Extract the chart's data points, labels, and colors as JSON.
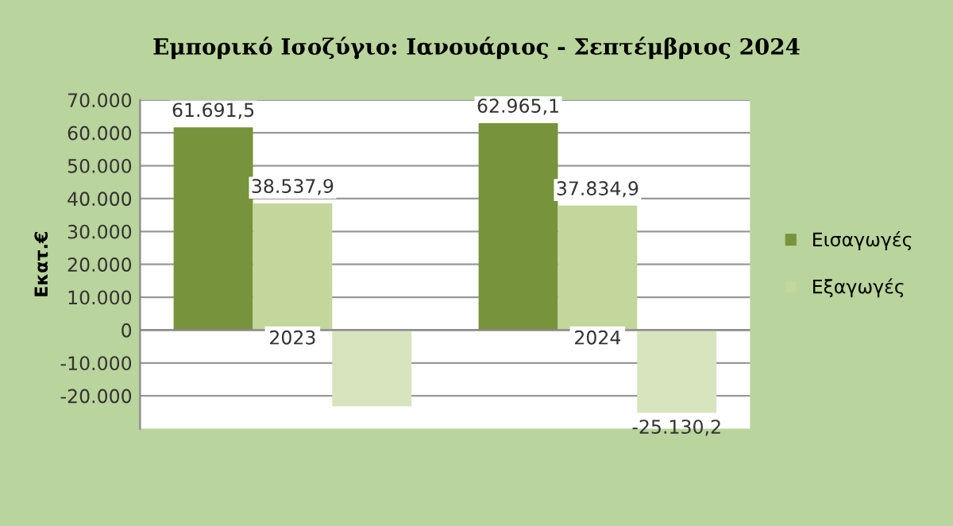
{
  "chart_data": {
    "type": "bar",
    "title": "Εμπορικό Ισοζύγιο: Ιανουάριος - Σεπτέμβριος 2024",
    "ylabel": "Εκατ.€",
    "categories": [
      "2023",
      "2024"
    ],
    "series": [
      {
        "name": "Εισαγωγές",
        "color": "#77933c",
        "values": [
          61691.5,
          62965.1
        ],
        "value_labels": [
          "61.691,5",
          "62.965,1"
        ]
      },
      {
        "name": "Εξαγωγές",
        "color": "#c3d69b",
        "values": [
          38537.9,
          37834.9
        ],
        "value_labels": [
          "38.537,9",
          "37.834,9"
        ]
      },
      {
        "color": "#d7e4bd",
        "values": [
          -23150,
          -25130.2
        ],
        "value_labels": [
          null,
          "-25.130,2"
        ]
      }
    ],
    "ylim": [
      -30000,
      70000
    ],
    "yticks": [
      {
        "value": -20000,
        "label": "-20.000"
      },
      {
        "value": -10000,
        "label": "-10.000"
      },
      {
        "value": 0,
        "label": "0"
      },
      {
        "value": 10000,
        "label": "10.000"
      },
      {
        "value": 20000,
        "label": "20.000"
      },
      {
        "value": 30000,
        "label": "30.000"
      },
      {
        "value": 40000,
        "label": "40.000"
      },
      {
        "value": 50000,
        "label": "50.000"
      },
      {
        "value": 60000,
        "label": "60.000"
      },
      {
        "value": 70000,
        "label": "70.000"
      }
    ],
    "grid": "y",
    "legend": "right"
  }
}
